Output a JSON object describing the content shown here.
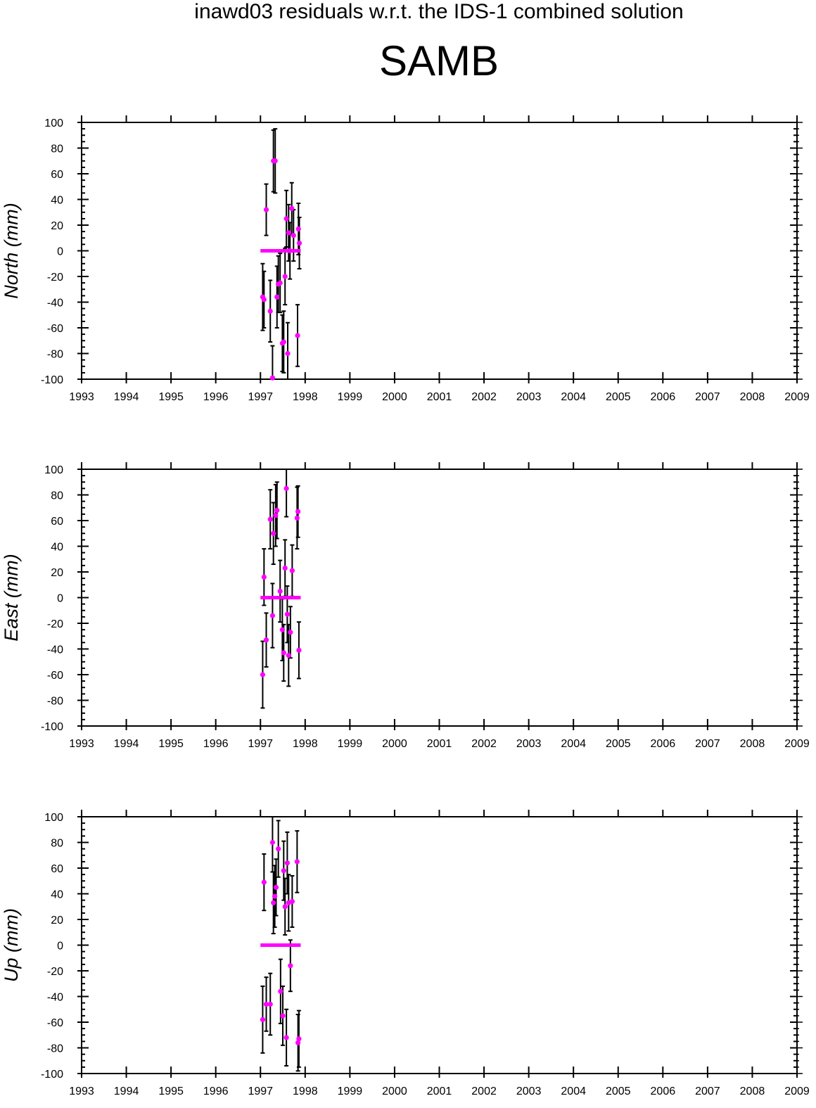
{
  "header": {
    "title": "inawd03 residuals w.r.t. the IDS-1 combined solution",
    "station": "SAMB"
  },
  "colors": {
    "points": "#ff00ff",
    "errorbars": "#000000",
    "zero_line": "#ff00ff",
    "axes": "#000000"
  },
  "chart_data": [
    {
      "type": "scatter",
      "panel": "north",
      "ylabel": "North (mm)",
      "xlim": [
        1993,
        2009
      ],
      "ylim": [
        -100,
        100
      ],
      "x_ticks": [
        "1993",
        "1994",
        "1995",
        "1996",
        "1997",
        "1998",
        "1999",
        "2000",
        "2001",
        "2002",
        "2003",
        "2004",
        "2005",
        "2006",
        "2007",
        "2008",
        "2009"
      ],
      "y_ticks": [
        "100",
        "80",
        "60",
        "40",
        "20",
        "0",
        "-20",
        "-40",
        "-60",
        "-80",
        "-100"
      ],
      "zero_line": [
        1997.0,
        1997.9
      ],
      "points": [
        {
          "x": 1997.05,
          "y": -36,
          "err": 26
        },
        {
          "x": 1997.08,
          "y": -38,
          "err": 22
        },
        {
          "x": 1997.13,
          "y": 32,
          "err": 20
        },
        {
          "x": 1997.22,
          "y": -47,
          "err": 24
        },
        {
          "x": 1997.27,
          "y": -99,
          "err": 25
        },
        {
          "x": 1997.29,
          "y": 70,
          "err": 24
        },
        {
          "x": 1997.33,
          "y": 70,
          "err": 25
        },
        {
          "x": 1997.37,
          "y": -36,
          "err": 24
        },
        {
          "x": 1997.4,
          "y": -26,
          "err": 22
        },
        {
          "x": 1997.44,
          "y": -25,
          "err": 23
        },
        {
          "x": 1997.49,
          "y": -72,
          "err": 22
        },
        {
          "x": 1997.52,
          "y": -71,
          "err": 24
        },
        {
          "x": 1997.55,
          "y": -20,
          "err": 22
        },
        {
          "x": 1997.58,
          "y": 25,
          "err": 22
        },
        {
          "x": 1997.61,
          "y": -80,
          "err": 24
        },
        {
          "x": 1997.63,
          "y": 14,
          "err": 22
        },
        {
          "x": 1997.66,
          "y": 0,
          "err": 22
        },
        {
          "x": 1997.7,
          "y": 33,
          "err": 20
        },
        {
          "x": 1997.74,
          "y": 12,
          "err": 20
        },
        {
          "x": 1997.83,
          "y": -66,
          "err": 24
        },
        {
          "x": 1997.85,
          "y": 17,
          "err": 20
        },
        {
          "x": 1997.87,
          "y": 6,
          "err": 20
        }
      ]
    },
    {
      "type": "scatter",
      "panel": "east",
      "ylabel": "East (mm)",
      "xlim": [
        1993,
        2009
      ],
      "ylim": [
        -100,
        100
      ],
      "x_ticks": [
        "1993",
        "1994",
        "1995",
        "1996",
        "1997",
        "1998",
        "1999",
        "2000",
        "2001",
        "2002",
        "2003",
        "2004",
        "2005",
        "2006",
        "2007",
        "2008",
        "2009"
      ],
      "y_ticks": [
        "100",
        "80",
        "60",
        "40",
        "20",
        "0",
        "-20",
        "-40",
        "-60",
        "-80",
        "-100"
      ],
      "zero_line": [
        1997.0,
        1997.9
      ],
      "points": [
        {
          "x": 1997.05,
          "y": -60,
          "err": 26
        },
        {
          "x": 1997.08,
          "y": 16,
          "err": 22
        },
        {
          "x": 1997.13,
          "y": -33,
          "err": 21
        },
        {
          "x": 1997.22,
          "y": 61,
          "err": 23
        },
        {
          "x": 1997.27,
          "y": -14,
          "err": 25
        },
        {
          "x": 1997.29,
          "y": 50,
          "err": 24
        },
        {
          "x": 1997.34,
          "y": 64,
          "err": 24
        },
        {
          "x": 1997.37,
          "y": 68,
          "err": 22
        },
        {
          "x": 1997.44,
          "y": 5,
          "err": 24
        },
        {
          "x": 1997.49,
          "y": -25,
          "err": 24
        },
        {
          "x": 1997.52,
          "y": -43,
          "err": 22
        },
        {
          "x": 1997.55,
          "y": 23,
          "err": 22
        },
        {
          "x": 1997.58,
          "y": 85,
          "err": 22
        },
        {
          "x": 1997.6,
          "y": -13,
          "err": 22
        },
        {
          "x": 1997.63,
          "y": -45,
          "err": 24
        },
        {
          "x": 1997.67,
          "y": -27,
          "err": 20
        },
        {
          "x": 1997.71,
          "y": 21,
          "err": 20
        },
        {
          "x": 1997.82,
          "y": 62,
          "err": 24
        },
        {
          "x": 1997.84,
          "y": 67,
          "err": 20
        },
        {
          "x": 1997.86,
          "y": -41,
          "err": 22
        }
      ]
    },
    {
      "type": "scatter",
      "panel": "up",
      "ylabel": "Up (mm)",
      "xlim": [
        1993,
        2009
      ],
      "ylim": [
        -100,
        100
      ],
      "x_ticks": [
        "1993",
        "1994",
        "1995",
        "1996",
        "1997",
        "1998",
        "1999",
        "2000",
        "2001",
        "2002",
        "2003",
        "2004",
        "2005",
        "2006",
        "2007",
        "2008",
        "2009"
      ],
      "y_ticks": [
        "100",
        "80",
        "60",
        "40",
        "20",
        "0",
        "-20",
        "-40",
        "-60",
        "-80",
        "-100"
      ],
      "zero_line": [
        1997.0,
        1997.9
      ],
      "points": [
        {
          "x": 1997.05,
          "y": -58,
          "err": 26
        },
        {
          "x": 1997.08,
          "y": 49,
          "err": 22
        },
        {
          "x": 1997.13,
          "y": -46,
          "err": 21
        },
        {
          "x": 1997.22,
          "y": -46,
          "err": 24
        },
        {
          "x": 1997.27,
          "y": 80,
          "err": 23
        },
        {
          "x": 1997.29,
          "y": 33,
          "err": 24
        },
        {
          "x": 1997.32,
          "y": 38,
          "err": 24
        },
        {
          "x": 1997.35,
          "y": 45,
          "err": 22
        },
        {
          "x": 1997.4,
          "y": 75,
          "err": 22
        },
        {
          "x": 1997.45,
          "y": -36,
          "err": 25
        },
        {
          "x": 1997.5,
          "y": -55,
          "err": 23
        },
        {
          "x": 1997.52,
          "y": 58,
          "err": 23
        },
        {
          "x": 1997.55,
          "y": 30,
          "err": 22
        },
        {
          "x": 1997.58,
          "y": -72,
          "err": 22
        },
        {
          "x": 1997.6,
          "y": 64,
          "err": 24
        },
        {
          "x": 1997.63,
          "y": 33,
          "err": 22
        },
        {
          "x": 1997.67,
          "y": -16,
          "err": 20
        },
        {
          "x": 1997.71,
          "y": 34,
          "err": 20
        },
        {
          "x": 1997.82,
          "y": 65,
          "err": 24
        },
        {
          "x": 1997.84,
          "y": -76,
          "err": 22
        },
        {
          "x": 1997.86,
          "y": -73,
          "err": 22
        }
      ]
    }
  ]
}
